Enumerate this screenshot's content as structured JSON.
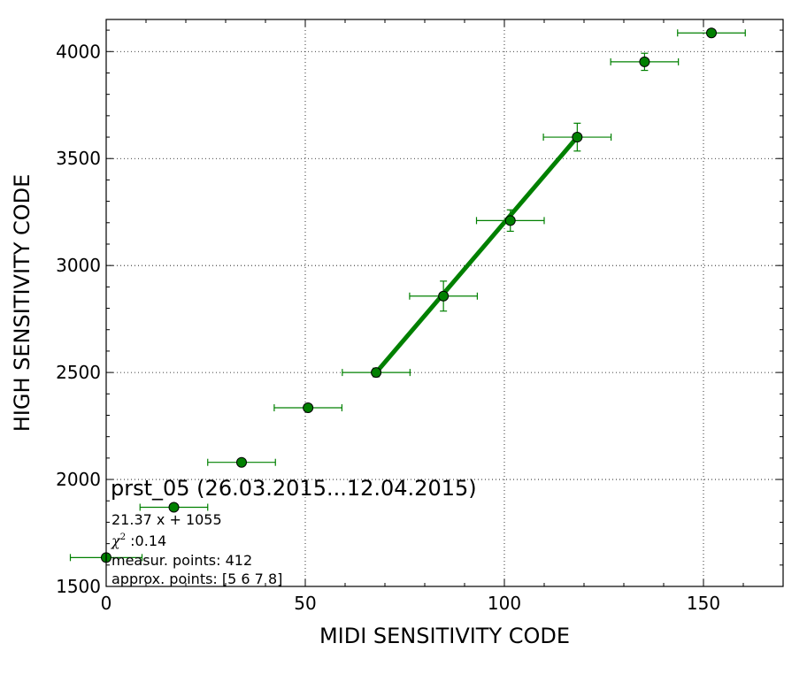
{
  "chart_data": {
    "type": "scatter",
    "xlabel": "MIDI SENSITIVITY CODE",
    "ylabel": "HIGH SENSITIVITY CODE",
    "xlim": [
      0,
      170
    ],
    "ylim": [
      1500,
      4150
    ],
    "xticks": [
      0,
      50,
      100,
      150
    ],
    "yticks": [
      1500,
      2000,
      2500,
      3000,
      3500,
      4000
    ],
    "xtick_labels": [
      "0",
      "50",
      "100",
      "150"
    ],
    "ytick_labels": [
      "1500",
      "2000",
      "2500",
      "3000",
      "3500",
      "4000"
    ],
    "grid": true,
    "colors": {
      "points": "#008000",
      "fit": "#008000",
      "marker_edge": "#000000"
    },
    "points": [
      {
        "x": 0,
        "y": 1635,
        "xerr": 9,
        "yerr": 10
      },
      {
        "x": 17,
        "y": 1870,
        "xerr": 8.5,
        "yerr": 10
      },
      {
        "x": 34,
        "y": 2080,
        "xerr": 8.5,
        "yerr": 10
      },
      {
        "x": 50.7,
        "y": 2335,
        "xerr": 8.5,
        "yerr": 15
      },
      {
        "x": 67.8,
        "y": 2500,
        "xerr": 8.5,
        "yerr": 20
      },
      {
        "x": 84.7,
        "y": 2857,
        "xerr": 8.5,
        "yerr": 70
      },
      {
        "x": 101.5,
        "y": 3210,
        "xerr": 8.5,
        "yerr": 50
      },
      {
        "x": 118.3,
        "y": 3600,
        "xerr": 8.5,
        "yerr": 65
      },
      {
        "x": 135.2,
        "y": 3952,
        "xerr": 8.5,
        "yerr": 40
      },
      {
        "x": 152,
        "y": 4087,
        "xerr": 8.5,
        "yerr": 10
      }
    ],
    "fit_line": {
      "x": [
        67.8,
        118.3
      ],
      "y": [
        2500,
        3600
      ]
    },
    "annotation": {
      "title": "prst_05 (26.03.2015...12.04.2015)",
      "equation": "21.37 x + 1055",
      "chi_symbol": "χ",
      "chi_sup": "2",
      "chi_value": " :0.14",
      "measur_points": "measur. points: 412",
      "approx_points": "approx. points: [5 6 7 8]"
    }
  }
}
